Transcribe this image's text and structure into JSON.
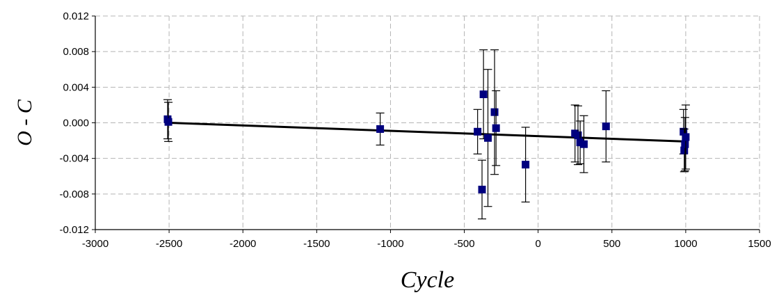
{
  "chart_data": {
    "type": "scatter",
    "xlabel": "Cycle",
    "ylabel": "O - C",
    "xlim": [
      -3000,
      1500
    ],
    "ylim": [
      -0.012,
      0.012
    ],
    "x_ticks": [
      "-3000",
      "-2500",
      "-2000",
      "-1500",
      "-1000",
      "-500",
      "0",
      "500",
      "1000",
      "1500"
    ],
    "y_ticks": [
      "0.012",
      "0.008",
      "0.004",
      "0.000",
      "-0.004",
      "-0.008",
      "-0.012"
    ],
    "grid": true,
    "legend": "none",
    "series": [
      {
        "points": [
          {
            "x": -2510,
            "y": 0.0004,
            "err": 0.0022
          },
          {
            "x": -2505,
            "y": 0.0001,
            "err": 0.0022
          },
          {
            "x": -1070,
            "y": -0.0007,
            "err": 0.0018
          },
          {
            "x": -410,
            "y": -0.001,
            "err": 0.0025
          },
          {
            "x": -380,
            "y": -0.0075,
            "err": 0.0033
          },
          {
            "x": -370,
            "y": 0.0032,
            "err": 0.005
          },
          {
            "x": -340,
            "y": -0.0017,
            "err": 0.0077
          },
          {
            "x": -295,
            "y": 0.0012,
            "err": 0.007
          },
          {
            "x": -285,
            "y": -0.0006,
            "err": 0.0042
          },
          {
            "x": -85,
            "y": -0.0047,
            "err": 0.0042
          },
          {
            "x": 250,
            "y": -0.0012,
            "err": 0.0032
          },
          {
            "x": 270,
            "y": -0.0014,
            "err": 0.0033
          },
          {
            "x": 285,
            "y": -0.0022,
            "err": 0.0024
          },
          {
            "x": 310,
            "y": -0.0024,
            "err": 0.0032
          },
          {
            "x": 460,
            "y": -0.0004,
            "err": 0.004
          },
          {
            "x": 985,
            "y": -0.001,
            "err": 0.0025
          },
          {
            "x": 990,
            "y": -0.0031,
            "err": 0.0024
          },
          {
            "x": 995,
            "y": -0.0024,
            "err": 0.003
          },
          {
            "x": 1000,
            "y": -0.0016,
            "err": 0.0036
          }
        ]
      }
    ],
    "fit_line": {
      "x": [
        -2500,
        1000
      ],
      "y": [
        0.0,
        -0.0021
      ]
    },
    "colors": {
      "marker": "#00007f",
      "fit": "#000000",
      "grid": "#b4b4b4",
      "axis": "#000000"
    }
  }
}
